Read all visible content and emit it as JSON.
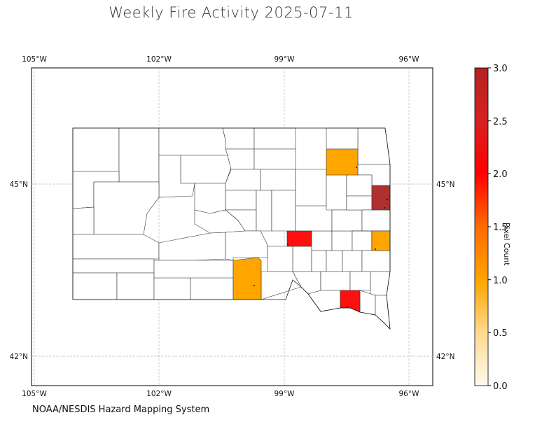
{
  "title": "Weekly Fire Activity 2025-07-11",
  "footer": "NOAA/NESDIS Hazard Mapping System",
  "colorbar": {
    "label": "Pixel Count",
    "ticks": [
      "0.0",
      "0.5",
      "1.0",
      "1.5",
      "2.0",
      "2.5",
      "3.0"
    ],
    "min": 0,
    "max": 3,
    "colors": [
      "#fff8e1",
      "#ffc04d",
      "#ffa500",
      "#ff6a00",
      "#ff0000",
      "#d42a1a",
      "#b22222"
    ]
  },
  "axes": {
    "lon_ticks": [
      "105°W",
      "102°W",
      "99°W",
      "96°W"
    ],
    "lat_ticks": [
      "45°N",
      "42°N"
    ],
    "grid": true
  },
  "fire_counties": [
    {
      "id": "brown",
      "pixel_count": 1
    },
    {
      "id": "deuel",
      "pixel_count": 3
    },
    {
      "id": "buffalo",
      "pixel_count": 2
    },
    {
      "id": "minnehaha",
      "pixel_count": 1
    },
    {
      "id": "tripp",
      "pixel_count": 1
    },
    {
      "id": "yankton",
      "pixel_count": 2
    }
  ]
}
